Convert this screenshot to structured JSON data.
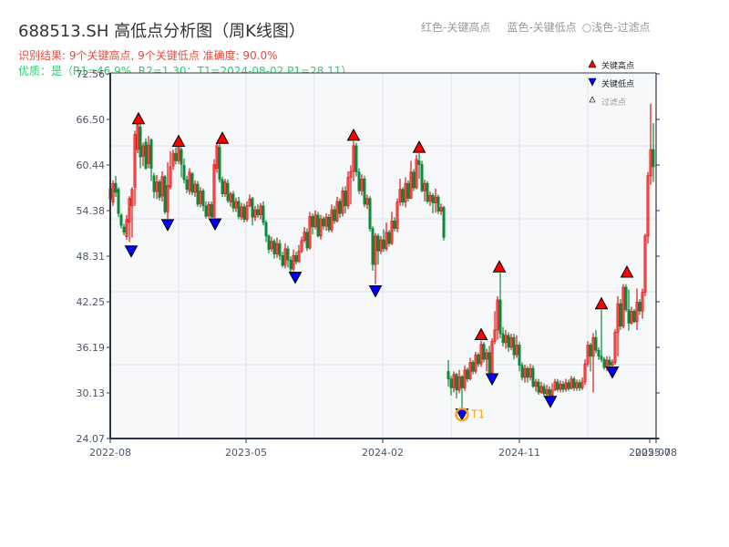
{
  "title": "688513.SH 高低点分析图（周K线图）",
  "summary_line": "识别结果: 9个关键高点, 9个关键低点   准确度: 90.0%",
  "quality_line": "优质：是（R1=46.9%, R2=1.30；T1=2024-08-02 P1=28.11）",
  "header_legend": {
    "red": "红色-关键高点",
    "blue": "蓝色-关键低点",
    "light": "○浅色-过滤点"
  },
  "legend": {
    "high": "关键高点",
    "low": "关键低点",
    "filtered": "过滤点"
  },
  "colors": {
    "up": "#d7191c",
    "down": "#0a8a3a",
    "high_marker": "#ff0000",
    "low_marker": "#0000ff",
    "t1_ring": "#f5a623",
    "plot_bg": "#f7f8fa",
    "grid": "#e2e5ea",
    "axis": "#2d3748"
  },
  "chart_data": {
    "type": "candlestick",
    "title": "688513.SH 高低点分析图（周K线图）",
    "xlabel": "",
    "ylabel": "",
    "ylim": [
      24.07,
      72.56
    ],
    "yticks": [
      "72.56",
      "66.50",
      "60.44",
      "54.38",
      "48.31",
      "42.25",
      "36.19",
      "30.13",
      "24.07"
    ],
    "xticks": [
      "2022-08",
      "2023-05",
      "2024-02",
      "2024-11",
      "2025-07",
      "2025-08"
    ],
    "xtick_pos": [
      121,
      270,
      420,
      570,
      713,
      720
    ],
    "grid": true,
    "legend_position": "upper right",
    "annotation": {
      "label": "T1",
      "date": "2024-08-02",
      "price": 28.11
    },
    "key_highs": [
      {
        "x": 152,
        "price": 65.8
      },
      {
        "x": 196,
        "price": 62.8
      },
      {
        "x": 244,
        "price": 63.2
      },
      {
        "x": 388,
        "price": 63.6
      },
      {
        "x": 460,
        "price": 62.0
      },
      {
        "x": 528,
        "price": 37.1
      },
      {
        "x": 548,
        "price": 46.1
      },
      {
        "x": 660,
        "price": 41.2
      },
      {
        "x": 688,
        "price": 45.4
      }
    ],
    "key_lows": [
      {
        "x": 144,
        "price": 49.8
      },
      {
        "x": 184,
        "price": 53.3
      },
      {
        "x": 236,
        "price": 53.4
      },
      {
        "x": 324,
        "price": 46.3
      },
      {
        "x": 412,
        "price": 44.5
      },
      {
        "x": 507,
        "price": 28.11
      },
      {
        "x": 540,
        "price": 32.8
      },
      {
        "x": 604,
        "price": 29.8
      },
      {
        "x": 672,
        "price": 33.7
      }
    ],
    "candles": [
      [
        121,
        57.3,
        55.9,
        58.0,
        55.0
      ],
      [
        124,
        55.5,
        58.0,
        58.4,
        55.0
      ],
      [
        127,
        58.0,
        56.8,
        59.0,
        56.2
      ],
      [
        130,
        57.2,
        54.0,
        57.5,
        53.5
      ],
      [
        133,
        53.8,
        52.4,
        54.0,
        52.0
      ],
      [
        136,
        52.2,
        51.5,
        52.6,
        51.1
      ],
      [
        139,
        50.9,
        53.2,
        53.8,
        50.5
      ],
      [
        142,
        52.8,
        56.0,
        56.3,
        50.2
      ],
      [
        145,
        55.0,
        57.2,
        57.5,
        50.8
      ],
      [
        148,
        57.5,
        64.5,
        65.0,
        55.0
      ],
      [
        151,
        62.5,
        65.8,
        66.3,
        62.0
      ],
      [
        154,
        65.5,
        61.5,
        66.0,
        60.0
      ],
      [
        157,
        61.6,
        63.0,
        63.4,
        60.3
      ],
      [
        160,
        63.5,
        60.0,
        64.0,
        59.8
      ],
      [
        163,
        60.6,
        63.1,
        64.3,
        60.0
      ],
      [
        166,
        63.8,
        60.0,
        64.0,
        58.3
      ],
      [
        169,
        59.0,
        56.9,
        59.4,
        56.0
      ],
      [
        172,
        56.9,
        58.2,
        59.1,
        55.9
      ],
      [
        175,
        58.2,
        56.1,
        58.5,
        55.7
      ],
      [
        178,
        56.3,
        58.9,
        59.6,
        55.6
      ],
      [
        181,
        58.9,
        54.2,
        59.1,
        53.9
      ],
      [
        184,
        54.2,
        57.7,
        60.8,
        53.3
      ],
      [
        187,
        57.5,
        60.2,
        62.3,
        57.2
      ],
      [
        190,
        60.3,
        62.0,
        62.5,
        59.8
      ],
      [
        193,
        62.0,
        61.0,
        62.8,
        60.5
      ],
      [
        196,
        61.0,
        62.8,
        63.2,
        60.6
      ],
      [
        199,
        62.5,
        60.5,
        62.8,
        58.8
      ],
      [
        202,
        60.4,
        58.5,
        61.3,
        58.0
      ],
      [
        205,
        58.5,
        57.2,
        59.0,
        56.7
      ],
      [
        208,
        57.0,
        59.5,
        60.0,
        56.5
      ],
      [
        211,
        59.3,
        56.8,
        59.5,
        56.4
      ],
      [
        214,
        56.8,
        57.9,
        58.4,
        56.2
      ],
      [
        217,
        57.9,
        55.2,
        58.3,
        54.9
      ],
      [
        220,
        55.3,
        57.0,
        57.5,
        54.8
      ],
      [
        223,
        57.0,
        55.0,
        57.3,
        54.3
      ],
      [
        226,
        55.0,
        53.6,
        55.6,
        53.3
      ],
      [
        229,
        53.7,
        55.2,
        55.6,
        53.4
      ],
      [
        232,
        55.2,
        53.5,
        55.6,
        53.4
      ],
      [
        235,
        53.5,
        60.5,
        61.2,
        53.4
      ],
      [
        238,
        60.0,
        63.0,
        63.3,
        59.4
      ],
      [
        241,
        62.8,
        58.5,
        63.2,
        58.1
      ],
      [
        244,
        58.5,
        56.6,
        58.9,
        56.2
      ],
      [
        247,
        56.6,
        58.2,
        58.6,
        56.2
      ],
      [
        250,
        58.0,
        55.7,
        58.5,
        55.4
      ],
      [
        253,
        55.5,
        56.6,
        56.9,
        54.9
      ],
      [
        256,
        56.6,
        54.7,
        57.0,
        54.2
      ],
      [
        259,
        54.7,
        55.6,
        56.1,
        54.2
      ],
      [
        262,
        55.6,
        53.6,
        56.2,
        53.2
      ],
      [
        265,
        53.5,
        54.9,
        55.4,
        53.1
      ],
      [
        268,
        54.9,
        53.2,
        55.3,
        52.8
      ],
      [
        271,
        53.2,
        55.0,
        55.6,
        52.9
      ],
      [
        274,
        55.0,
        55.9,
        56.5,
        54.8
      ],
      [
        277,
        56.0,
        53.5,
        56.2,
        52.4
      ],
      [
        280,
        53.5,
        54.5,
        55.0,
        53.0
      ],
      [
        283,
        54.5,
        53.8,
        55.2,
        53.4
      ],
      [
        286,
        53.8,
        55.0,
        55.4,
        53.2
      ],
      [
        289,
        55.0,
        52.8,
        55.6,
        52.4
      ],
      [
        292,
        52.8,
        51.0,
        53.1,
        50.2
      ],
      [
        295,
        51.0,
        49.2,
        51.2,
        48.7
      ],
      [
        298,
        49.3,
        50.3,
        50.9,
        48.9
      ],
      [
        301,
        50.3,
        48.6,
        50.6,
        48.0
      ],
      [
        304,
        48.6,
        50.0,
        50.8,
        48.1
      ],
      [
        307,
        50.0,
        48.4,
        50.5,
        47.8
      ],
      [
        310,
        48.4,
        47.1,
        48.9,
        46.8
      ],
      [
        313,
        47.1,
        49.3,
        50.0,
        46.7
      ],
      [
        316,
        49.3,
        47.8,
        49.7,
        46.8
      ],
      [
        319,
        47.8,
        46.6,
        48.3,
        46.2
      ],
      [
        322,
        46.6,
        48.4,
        49.2,
        46.3
      ],
      [
        325,
        48.4,
        47.6,
        48.9,
        47.2
      ],
      [
        328,
        47.6,
        49.0,
        49.8,
        47.4
      ],
      [
        331,
        49.0,
        50.4,
        50.9,
        48.7
      ],
      [
        334,
        50.4,
        51.5,
        52.2,
        50.1
      ],
      [
        337,
        51.5,
        49.4,
        52.0,
        49.0
      ],
      [
        340,
        49.4,
        53.6,
        54.2,
        49.2
      ],
      [
        343,
        53.6,
        52.2,
        54.0,
        51.2
      ],
      [
        346,
        52.2,
        53.8,
        54.4,
        51.9
      ],
      [
        349,
        53.8,
        51.0,
        54.2,
        50.8
      ],
      [
        352,
        51.0,
        53.3,
        53.8,
        50.5
      ],
      [
        355,
        53.3,
        52.3,
        53.6,
        51.8
      ],
      [
        358,
        52.3,
        53.5,
        54.0,
        51.7
      ],
      [
        361,
        53.5,
        51.8,
        53.9,
        51.5
      ],
      [
        364,
        51.8,
        54.5,
        55.2,
        51.5
      ],
      [
        367,
        54.5,
        53.0,
        55.0,
        52.6
      ],
      [
        370,
        53.0,
        55.6,
        56.2,
        52.8
      ],
      [
        373,
        55.6,
        54.0,
        56.0,
        53.4
      ],
      [
        376,
        54.0,
        57.0,
        57.5,
        53.6
      ],
      [
        379,
        57.0,
        55.0,
        57.6,
        54.0
      ],
      [
        382,
        55.0,
        58.8,
        59.6,
        54.6
      ],
      [
        385,
        58.8,
        59.6,
        60.4,
        55.2
      ],
      [
        388,
        59.6,
        63.0,
        63.6,
        58.3
      ],
      [
        391,
        63.0,
        59.5,
        63.4,
        58.9
      ],
      [
        394,
        59.5,
        57.0,
        60.0,
        56.6
      ],
      [
        397,
        57.0,
        58.6,
        59.2,
        56.4
      ],
      [
        400,
        58.6,
        55.2,
        59.0,
        54.8
      ],
      [
        403,
        55.2,
        56.0,
        56.5,
        54.6
      ],
      [
        406,
        56.0,
        52.0,
        56.3,
        51.6
      ],
      [
        409,
        52.0,
        47.2,
        52.3,
        46.4
      ],
      [
        412,
        47.2,
        51.0,
        51.4,
        44.6
      ],
      [
        415,
        51.0,
        49.0,
        51.3,
        47.2
      ],
      [
        418,
        49.0,
        50.5,
        51.0,
        48.6
      ],
      [
        421,
        50.5,
        49.3,
        51.9,
        48.9
      ],
      [
        424,
        49.3,
        51.5,
        52.8,
        49.0
      ],
      [
        427,
        51.5,
        50.0,
        51.8,
        49.6
      ],
      [
        430,
        50.0,
        53.0,
        54.2,
        49.8
      ],
      [
        433,
        53.0,
        52.0,
        53.5,
        51.6
      ],
      [
        436,
        52.0,
        55.5,
        56.0,
        51.5
      ],
      [
        439,
        55.5,
        57.2,
        58.6,
        55.0
      ],
      [
        442,
        57.2,
        55.5,
        57.5,
        55.0
      ],
      [
        445,
        55.5,
        58.0,
        58.8,
        54.8
      ],
      [
        448,
        58.0,
        56.0,
        58.4,
        55.6
      ],
      [
        451,
        56.0,
        59.5,
        61.0,
        55.9
      ],
      [
        454,
        59.5,
        57.4,
        59.9,
        57.0
      ],
      [
        457,
        57.4,
        61.2,
        61.8,
        57.2
      ],
      [
        460,
        61.0,
        60.5,
        62.0,
        58.6
      ],
      [
        463,
        60.5,
        57.0,
        61.0,
        56.8
      ],
      [
        466,
        57.0,
        58.0,
        58.5,
        55.6
      ],
      [
        469,
        58.0,
        55.6,
        58.3,
        55.3
      ],
      [
        472,
        55.6,
        56.4,
        56.9,
        55.0
      ],
      [
        475,
        56.4,
        55.4,
        56.7,
        54.0
      ],
      [
        478,
        55.4,
        56.2,
        57.3,
        54.1
      ],
      [
        481,
        56.2,
        54.3,
        56.5,
        53.9
      ],
      [
        484,
        54.3,
        54.8,
        55.3,
        53.8
      ],
      [
        487,
        54.8,
        50.8,
        55.0,
        50.4
      ],
      [
        492,
        33.0,
        32.0,
        34.5,
        31.0
      ],
      [
        495,
        32.0,
        30.8,
        32.4,
        29.8
      ],
      [
        498,
        30.8,
        32.6,
        33.0,
        30.2
      ],
      [
        501,
        32.6,
        30.5,
        32.8,
        29.4
      ],
      [
        504,
        30.5,
        32.3,
        33.2,
        30.1
      ],
      [
        507,
        32.3,
        30.8,
        32.5,
        28.11
      ],
      [
        510,
        30.8,
        33.2,
        33.8,
        30.4
      ],
      [
        513,
        33.2,
        32.0,
        33.5,
        31.6
      ],
      [
        516,
        32.0,
        34.2,
        34.8,
        31.8
      ],
      [
        519,
        34.2,
        33.0,
        34.5,
        32.6
      ],
      [
        522,
        33.0,
        35.2,
        35.6,
        32.7
      ],
      [
        525,
        35.2,
        34.0,
        35.5,
        33.6
      ],
      [
        528,
        34.0,
        36.6,
        37.1,
        33.6
      ],
      [
        531,
        36.6,
        34.6,
        36.9,
        34.2
      ],
      [
        534,
        34.6,
        35.5,
        36.0,
        33.0
      ],
      [
        537,
        35.5,
        32.8,
        36.4,
        32.4
      ],
      [
        540,
        32.8,
        37.0,
        37.4,
        32.6
      ],
      [
        543,
        37.0,
        38.5,
        41.0,
        36.6
      ],
      [
        546,
        38.5,
        42.5,
        43.0,
        37.2
      ],
      [
        549,
        42.5,
        38.0,
        46.1,
        37.4
      ],
      [
        552,
        38.0,
        36.8,
        38.9,
        36.3
      ],
      [
        555,
        36.8,
        37.8,
        38.5,
        36.0
      ],
      [
        558,
        37.8,
        36.2,
        38.2,
        35.6
      ],
      [
        561,
        36.2,
        37.5,
        38.0,
        35.8
      ],
      [
        564,
        37.5,
        35.2,
        38.0,
        34.6
      ],
      [
        567,
        35.2,
        36.5,
        37.8,
        34.8
      ],
      [
        570,
        36.5,
        33.8,
        36.9,
        33.0
      ],
      [
        573,
        33.8,
        32.2,
        34.2,
        31.8
      ],
      [
        576,
        32.2,
        33.4,
        33.9,
        31.5
      ],
      [
        579,
        33.4,
        32.2,
        33.7,
        31.5
      ],
      [
        582,
        32.2,
        33.4,
        34.0,
        31.8
      ],
      [
        585,
        33.4,
        31.0,
        33.8,
        30.8
      ],
      [
        588,
        31.0,
        31.6,
        32.0,
        30.3
      ],
      [
        591,
        31.6,
        30.2,
        32.0,
        29.9
      ],
      [
        594,
        30.2,
        31.0,
        31.6,
        30.0
      ],
      [
        597,
        31.0,
        30.0,
        31.4,
        29.6
      ],
      [
        600,
        30.0,
        30.6,
        31.2,
        29.6
      ],
      [
        603,
        30.6,
        29.8,
        31.0,
        29.5
      ],
      [
        606,
        29.8,
        30.5,
        31.4,
        29.6
      ],
      [
        609,
        30.5,
        31.6,
        32.0,
        30.4
      ],
      [
        612,
        31.6,
        30.6,
        32.0,
        30.3
      ],
      [
        615,
        30.6,
        31.3,
        31.8,
        30.2
      ],
      [
        618,
        31.3,
        30.6,
        31.7,
        30.2
      ],
      [
        621,
        30.6,
        31.5,
        32.0,
        30.3
      ],
      [
        624,
        31.5,
        30.7,
        31.9,
        30.4
      ],
      [
        627,
        30.7,
        32.0,
        32.4,
        30.6
      ],
      [
        630,
        32.0,
        30.8,
        32.3,
        30.4
      ],
      [
        633,
        30.8,
        31.5,
        31.9,
        30.4
      ],
      [
        636,
        31.5,
        30.8,
        31.9,
        30.4
      ],
      [
        639,
        30.8,
        31.6,
        32.2,
        30.5
      ],
      [
        642,
        31.6,
        34.0,
        34.6,
        31.2
      ],
      [
        645,
        34.0,
        36.5,
        37.0,
        33.6
      ],
      [
        648,
        36.5,
        35.0,
        36.8,
        33.0
      ],
      [
        651,
        35.0,
        37.5,
        38.1,
        30.2
      ],
      [
        654,
        37.5,
        35.8,
        38.5,
        35.4
      ],
      [
        657,
        35.8,
        35.0,
        36.2,
        34.5
      ],
      [
        660,
        35.0,
        34.6,
        41.2,
        34.2
      ],
      [
        663,
        34.6,
        33.5,
        34.9,
        33.2
      ],
      [
        666,
        33.5,
        34.5,
        35.0,
        33.0
      ],
      [
        669,
        34.5,
        33.8,
        35.0,
        33.4
      ],
      [
        672,
        33.8,
        34.2,
        34.6,
        33.6
      ],
      [
        675,
        34.2,
        38.2,
        38.6,
        33.9
      ],
      [
        678,
        38.2,
        42.0,
        43.0,
        35.0
      ],
      [
        681,
        42.0,
        39.0,
        42.6,
        38.5
      ],
      [
        684,
        39.0,
        44.2,
        44.6,
        38.7
      ],
      [
        687,
        44.2,
        41.2,
        44.6,
        40.9
      ],
      [
        690,
        41.2,
        39.4,
        43.9,
        38.4
      ],
      [
        693,
        39.4,
        41.0,
        41.6,
        39.2
      ],
      [
        696,
        41.0,
        39.6,
        41.3,
        39.4
      ],
      [
        699,
        39.6,
        42.2,
        44.0,
        38.5
      ],
      [
        702,
        42.2,
        41.0,
        42.6,
        40.5
      ],
      [
        705,
        41.0,
        43.5,
        44.0,
        40.0
      ],
      [
        708,
        43.5,
        51.0,
        51.3,
        43.0
      ],
      [
        711,
        51.0,
        59.0,
        59.5,
        50.0
      ],
      [
        714,
        59.0,
        62.5,
        68.6,
        57.8
      ],
      [
        717,
        62.5,
        60.2,
        66.0,
        58.2
      ]
    ]
  }
}
